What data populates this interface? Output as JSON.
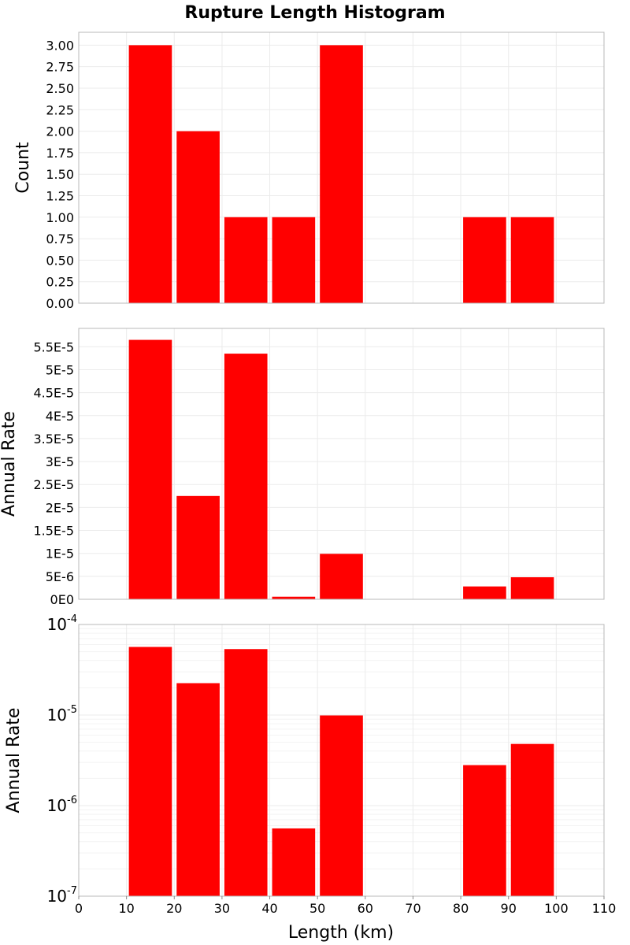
{
  "chart_data": {
    "type": "bar",
    "title": "Rupture Length Histogram",
    "xlabel": "Length (km)",
    "xlim": [
      0,
      110
    ],
    "x_ticks": [
      "0",
      "10",
      "20",
      "30",
      "40",
      "50",
      "60",
      "70",
      "80",
      "90",
      "100",
      "110"
    ],
    "bin_width": 10,
    "bar_color": "#ff0000",
    "bins": [
      {
        "range": "10-20",
        "count": 3,
        "annual_rate": 5.65e-05
      },
      {
        "range": "20-30",
        "count": 2,
        "annual_rate": 2.25e-05
      },
      {
        "range": "30-40",
        "count": 1,
        "annual_rate": 5.35e-05
      },
      {
        "range": "40-50",
        "count": 1,
        "annual_rate": 5.6e-07
      },
      {
        "range": "50-60",
        "count": 3,
        "annual_rate": 9.9e-06
      },
      {
        "range": "80-90",
        "count": 1,
        "annual_rate": 2.8e-06
      },
      {
        "range": "90-100",
        "count": 1,
        "annual_rate": 4.8e-06
      }
    ],
    "panels": [
      {
        "name": "count",
        "ylabel": "Count",
        "scale": "linear",
        "ylim": [
          0,
          3.15
        ],
        "y_ticks": [
          "0.00",
          "0.25",
          "0.50",
          "0.75",
          "1.00",
          "1.25",
          "1.50",
          "1.75",
          "2.00",
          "2.25",
          "2.50",
          "2.75",
          "3.00"
        ],
        "series": "count"
      },
      {
        "name": "rate-linear",
        "ylabel": "Annual Rate",
        "scale": "linear",
        "ylim": [
          0,
          5.9e-05
        ],
        "y_ticks": [
          "0E0",
          "5E-6",
          "1E-5",
          "1.5E-5",
          "2E-5",
          "2.5E-5",
          "3E-5",
          "3.5E-5",
          "4E-5",
          "4.5E-5",
          "5E-5",
          "5.5E-5"
        ],
        "series": "annual_rate"
      },
      {
        "name": "rate-log",
        "ylabel": "Annual Rate",
        "scale": "log",
        "ylim": [
          1e-07,
          0.0001
        ],
        "y_ticks": [
          {
            "base": "10",
            "exp": "-7"
          },
          {
            "base": "10",
            "exp": "-6"
          },
          {
            "base": "10",
            "exp": "-5"
          },
          {
            "base": "10",
            "exp": "-4"
          }
        ],
        "series": "annual_rate"
      }
    ]
  }
}
